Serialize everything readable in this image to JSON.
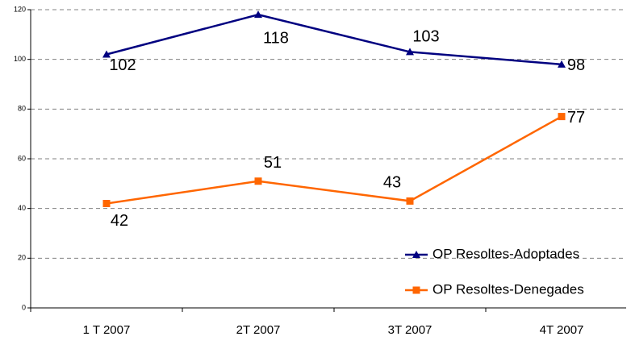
{
  "chart_data": {
    "type": "line",
    "categories": [
      "1 T 2007",
      "2T 2007",
      "3T 2007",
      "4T 2007"
    ],
    "series": [
      {
        "name": "OP Resoltes-Adoptades",
        "color": "#000080",
        "marker": "triangle",
        "values": [
          102,
          118,
          103,
          98
        ]
      },
      {
        "name": "OP Resoltes-Denegades",
        "color": "#ff6600",
        "marker": "square",
        "values": [
          42,
          51,
          43,
          77
        ]
      }
    ],
    "ylim": [
      0,
      120
    ],
    "yticks": [
      0,
      20,
      40,
      60,
      80,
      100,
      120
    ],
    "grid": true,
    "legend": "bottom-right"
  }
}
